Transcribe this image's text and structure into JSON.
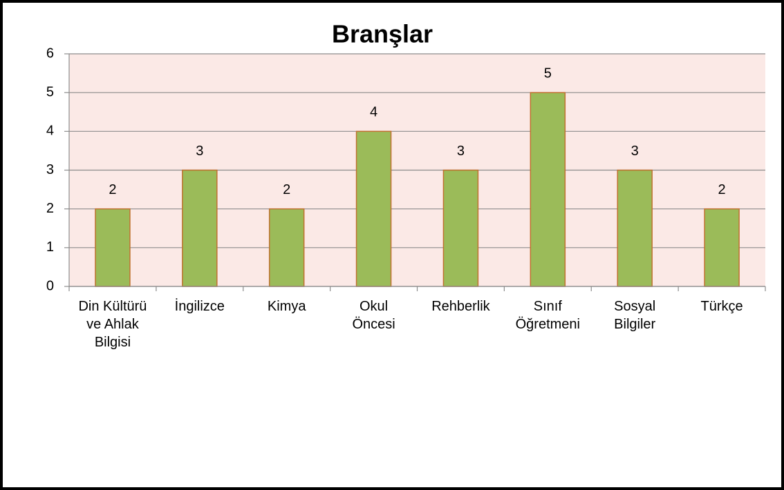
{
  "chart_data": {
    "type": "bar",
    "title": "Branşlar",
    "categories": [
      "Din Kültürü ve Ahlak Bilgisi",
      "İngilizce",
      "Kimya",
      "Okul Öncesi",
      "Rehberlik",
      "Sınıf Öğretmeni",
      "Sosyal Bilgiler",
      "Türkçe"
    ],
    "values": [
      2,
      3,
      2,
      4,
      3,
      5,
      3,
      2
    ],
    "color": "#9bbb59",
    "edge_color": "#c0702f",
    "plot_background": "#fbe9e6",
    "ylim": [
      0,
      6
    ],
    "yticks": [
      0,
      1,
      2,
      3,
      4,
      5,
      6
    ],
    "grid": true
  }
}
